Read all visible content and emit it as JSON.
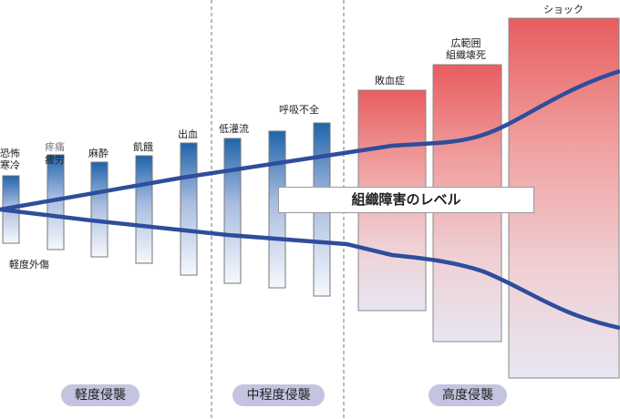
{
  "labels": {
    "fear_cold": "恐怖\n寒冷",
    "pain": "疼痛",
    "fatigue": "疲労",
    "anesthesia": "麻酔",
    "starvation": "飢餓",
    "bleeding": "出血",
    "minor_trauma": "軽度外傷",
    "hypoperfusion": "低灌流",
    "resp_failure": "呼吸不全",
    "sepsis": "敗血症",
    "necrosis": "広範囲\n組織壊死",
    "shock": "ショック"
  },
  "level_label": "組織障害のレベル",
  "categories": [
    "軽度侵襲",
    "中程度侵襲",
    "高度侵襲"
  ],
  "colors": {
    "blue_bar": "#1f64aa",
    "red_bar": "#e86060",
    "curve": "#2e4d9c",
    "pill": "#c4c4e0"
  }
}
